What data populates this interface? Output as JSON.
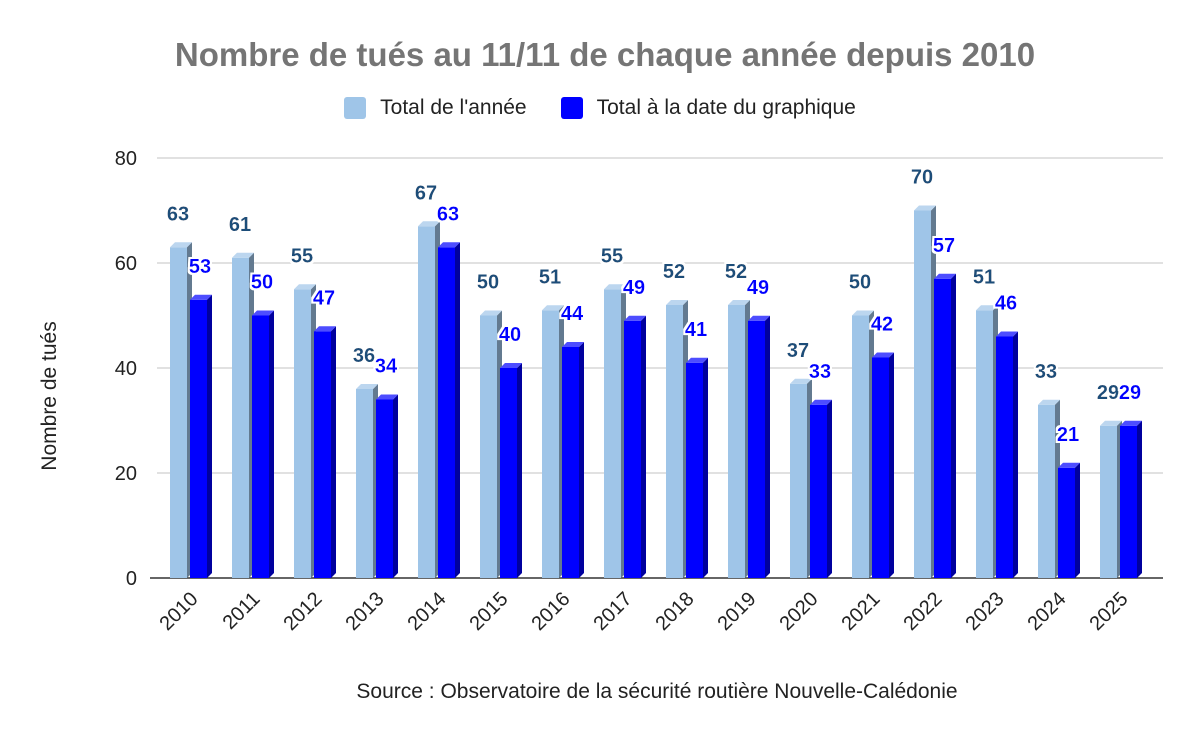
{
  "chart_data": {
    "type": "bar",
    "title": "Nombre de tués au 11/11 de chaque année depuis 2010",
    "ylabel": "Nombre de tués",
    "xlabel": "",
    "source": "Source : Observatoire de la sécurité routière Nouvelle-Calédonie",
    "ylim": [
      0,
      80
    ],
    "yticks": [
      0,
      20,
      40,
      60,
      80
    ],
    "grid": true,
    "legend_position": "top",
    "categories": [
      "2010",
      "2011",
      "2012",
      "2013",
      "2014",
      "2015",
      "2016",
      "2017",
      "2018",
      "2019",
      "2020",
      "2021",
      "2022",
      "2023",
      "2024",
      "2025"
    ],
    "series": [
      {
        "name": "Total de l'année",
        "color": "#9fc5e8",
        "label_color": "#1f4e79",
        "values": [
          63,
          61,
          55,
          36,
          67,
          50,
          51,
          55,
          52,
          52,
          37,
          50,
          70,
          51,
          33,
          29
        ]
      },
      {
        "name": "Total à la date du graphique",
        "color": "#0000ff",
        "label_color": "#0000ff",
        "values": [
          53,
          50,
          47,
          34,
          63,
          40,
          44,
          49,
          41,
          49,
          33,
          42,
          57,
          46,
          21,
          29
        ]
      }
    ]
  }
}
